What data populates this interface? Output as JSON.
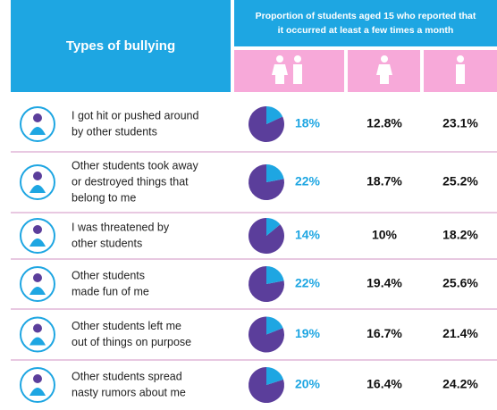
{
  "header": {
    "title": "Types of bullying",
    "subtitle_lines": [
      "Proportion of students aged 15 who reported that",
      "it occurred at least a few times a month"
    ]
  },
  "table": {
    "rows": [
      {
        "lines": [
          "I got hit or pushed around",
          "by other students"
        ],
        "total": 18,
        "total_label": "18%",
        "girls": "12.8%",
        "boys": "23.1%"
      },
      {
        "lines": [
          "Other students took away",
          "or destroyed things that",
          "belong to me"
        ],
        "total": 22,
        "total_label": "22%",
        "girls": "18.7%",
        "boys": "25.2%"
      },
      {
        "lines": [
          "I was threatened by",
          "other students"
        ],
        "total": 14,
        "total_label": "14%",
        "girls": "10%",
        "boys": "18.2%"
      },
      {
        "lines": [
          "Other students",
          "made fun of me"
        ],
        "total": 22,
        "total_label": "22%",
        "girls": "19.4%",
        "boys": "25.6%"
      },
      {
        "lines": [
          "Other students left me",
          "out of things on purpose"
        ],
        "total": 19,
        "total_label": "19%",
        "girls": "16.7%",
        "boys": "21.4%"
      },
      {
        "lines": [
          "Other students spread",
          "nasty rumors about me"
        ],
        "total": 20,
        "total_label": "20%",
        "girls": "16.4%",
        "boys": "24.2%"
      }
    ]
  }
}
